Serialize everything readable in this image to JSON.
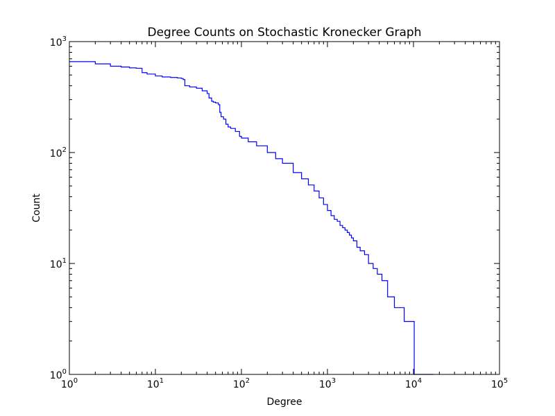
{
  "chart_data": {
    "type": "line",
    "title": "Degree Counts on Stochastic Kronecker Graph",
    "xlabel": "Degree",
    "ylabel": "Count",
    "xscale": "log",
    "yscale": "log",
    "xlim": [
      1,
      100000
    ],
    "ylim": [
      1,
      1000
    ],
    "grid": false,
    "line_color": "#0000ff",
    "x_ticks": [
      {
        "base": "10",
        "exp": "0",
        "value": 1
      },
      {
        "base": "10",
        "exp": "1",
        "value": 10
      },
      {
        "base": "10",
        "exp": "2",
        "value": 100
      },
      {
        "base": "10",
        "exp": "3",
        "value": 1000
      },
      {
        "base": "10",
        "exp": "4",
        "value": 10000
      },
      {
        "base": "10",
        "exp": "5",
        "value": 100000
      }
    ],
    "y_ticks": [
      {
        "base": "10",
        "exp": "0",
        "value": 1
      },
      {
        "base": "10",
        "exp": "1",
        "value": 10
      },
      {
        "base": "10",
        "exp": "2",
        "value": 100
      },
      {
        "base": "10",
        "exp": "3",
        "value": 1000
      }
    ],
    "series": [
      {
        "x": [
          1,
          2,
          3,
          4,
          5,
          6,
          7,
          8,
          10,
          12,
          15,
          18,
          20,
          21,
          22,
          25,
          30,
          35,
          40,
          42,
          45,
          47,
          50,
          54,
          56,
          58,
          62,
          66,
          70,
          75,
          85,
          95,
          100,
          120,
          150,
          200,
          250,
          300,
          400,
          500,
          600,
          700,
          800,
          900,
          1000,
          1100,
          1200,
          1300,
          1400,
          1500,
          1600,
          1700,
          1800,
          1900,
          2000,
          2200,
          2400,
          2700,
          3000,
          3400,
          3800,
          4300,
          5000,
          6000,
          7800,
          10200,
          10200,
          17000
        ],
        "y": [
          660,
          630,
          600,
          590,
          580,
          575,
          525,
          510,
          490,
          480,
          475,
          470,
          465,
          455,
          400,
          390,
          380,
          360,
          340,
          310,
          290,
          285,
          280,
          270,
          230,
          210,
          200,
          180,
          170,
          165,
          155,
          140,
          135,
          125,
          115,
          100,
          88,
          80,
          66,
          58,
          51,
          45,
          39,
          34,
          30,
          27,
          25,
          24,
          22,
          21,
          20,
          19,
          18,
          17,
          16,
          14,
          13,
          12,
          10,
          9,
          8,
          7,
          5,
          4,
          3,
          2,
          1,
          1
        ]
      }
    ]
  }
}
